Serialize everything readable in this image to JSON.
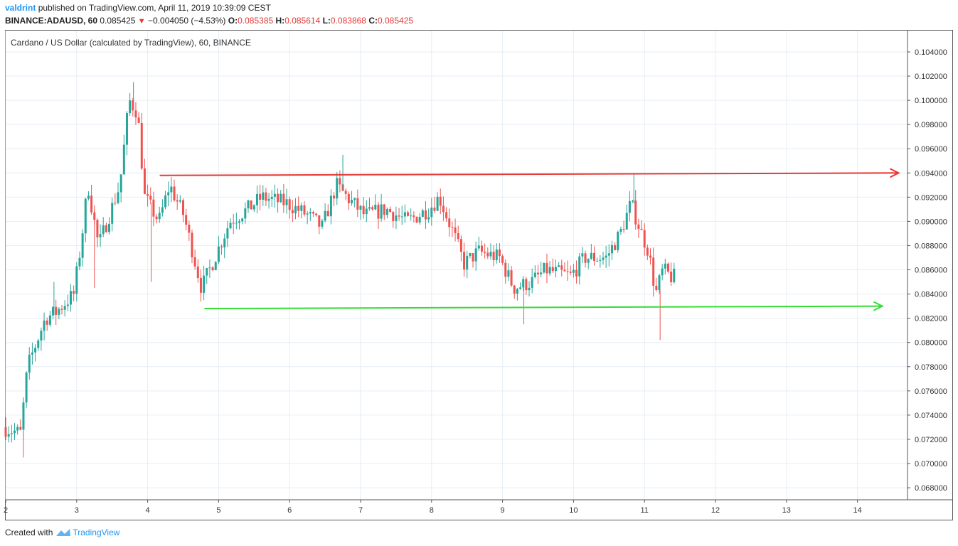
{
  "header": {
    "author": "valdrint",
    "published_text": "published on TradingView.com, April 11, 2019 10:39:09 CEST",
    "symbol": "BINANCE:ADAUSD, 60",
    "last": "0.085425",
    "change": "−0.004050 (−4.53%)",
    "o_label": "O:",
    "o_value": "0.085385",
    "h_label": "H:",
    "h_value": "0.085614",
    "l_label": "L:",
    "l_value": "0.083868",
    "c_label": "C:",
    "c_value": "0.085425"
  },
  "chart_title": "Cardano / US Dollar (calculated by TradingView), 60, BINANCE",
  "footer": {
    "created_with": "Created with",
    "brand": "TradingView"
  },
  "colors": {
    "up": "#26a69a",
    "down": "#ef5350",
    "resistance": "#e53935",
    "support": "#33dd33",
    "grid": "#e6eef5",
    "brand": "#2196f3"
  },
  "chart_data": {
    "type": "candlestick",
    "title": "Cardano / US Dollar (calculated by TradingView), 60, BINANCE",
    "x_ticks": [
      "2",
      "3",
      "4",
      "5",
      "6",
      "7",
      "8",
      "9",
      "10",
      "11",
      "12",
      "13",
      "14"
    ],
    "y_ticks": [
      "0.104000",
      "0.102000",
      "0.100000",
      "0.098000",
      "0.096000",
      "0.094000",
      "0.092000",
      "0.090000",
      "0.088000",
      "0.086000",
      "0.084000",
      "0.082000",
      "0.080000",
      "0.078000",
      "0.076000",
      "0.074000",
      "0.072000",
      "0.070000",
      "0.068000"
    ],
    "ylim": [
      0.0666,
      0.1049
    ],
    "xlim": [
      2,
      14.7
    ],
    "grid": true,
    "close_path": [
      [
        2.0,
        0.073
      ],
      [
        2.25,
        0.0725
      ],
      [
        2.35,
        0.078
      ],
      [
        2.6,
        0.082
      ],
      [
        2.75,
        0.0825
      ],
      [
        3.0,
        0.084
      ],
      [
        3.1,
        0.088
      ],
      [
        3.2,
        0.093
      ],
      [
        3.35,
        0.088
      ],
      [
        3.5,
        0.0905
      ],
      [
        3.65,
        0.093
      ],
      [
        3.78,
        0.1
      ],
      [
        3.9,
        0.099
      ],
      [
        4.0,
        0.092
      ],
      [
        4.2,
        0.09
      ],
      [
        4.35,
        0.093
      ],
      [
        4.55,
        0.0905
      ],
      [
        4.8,
        0.0845
      ],
      [
        4.95,
        0.0865
      ],
      [
        5.2,
        0.09
      ],
      [
        5.45,
        0.091
      ],
      [
        5.65,
        0.092
      ],
      [
        6.0,
        0.0915
      ],
      [
        6.3,
        0.0905
      ],
      [
        6.5,
        0.0895
      ],
      [
        6.7,
        0.093
      ],
      [
        6.85,
        0.092
      ],
      [
        7.1,
        0.0905
      ],
      [
        7.4,
        0.091
      ],
      [
        7.7,
        0.09
      ],
      [
        8.0,
        0.091
      ],
      [
        8.15,
        0.092
      ],
      [
        8.35,
        0.089
      ],
      [
        8.5,
        0.0865
      ],
      [
        8.7,
        0.0875
      ],
      [
        9.0,
        0.087
      ],
      [
        9.2,
        0.0845
      ],
      [
        9.45,
        0.085
      ],
      [
        9.65,
        0.086
      ],
      [
        10.0,
        0.0855
      ],
      [
        10.2,
        0.087
      ],
      [
        10.5,
        0.087
      ],
      [
        10.7,
        0.089
      ],
      [
        10.85,
        0.0915
      ],
      [
        11.0,
        0.089
      ],
      [
        11.1,
        0.0875
      ],
      [
        11.2,
        0.084
      ],
      [
        11.3,
        0.086
      ],
      [
        11.42,
        0.0854
      ]
    ],
    "spikes": [
      [
        2.25,
        0.0705,
        "low"
      ],
      [
        2.68,
        0.085,
        "high"
      ],
      [
        3.25,
        0.0845,
        "low"
      ],
      [
        3.8,
        0.1015,
        "high"
      ],
      [
        4.05,
        0.085,
        "low"
      ],
      [
        6.75,
        0.0955,
        "high"
      ],
      [
        9.3,
        0.0815,
        "low"
      ],
      [
        10.85,
        0.094,
        "high"
      ],
      [
        11.22,
        0.0802,
        "low"
      ]
    ],
    "annotations": [
      {
        "type": "arrow-line",
        "name": "resistance",
        "from": [
          4.17,
          0.0938
        ],
        "to": [
          14.58,
          0.094
        ]
      },
      {
        "type": "arrow-line",
        "name": "support",
        "from": [
          4.8,
          0.0828
        ],
        "to": [
          14.35,
          0.083
        ]
      }
    ]
  }
}
